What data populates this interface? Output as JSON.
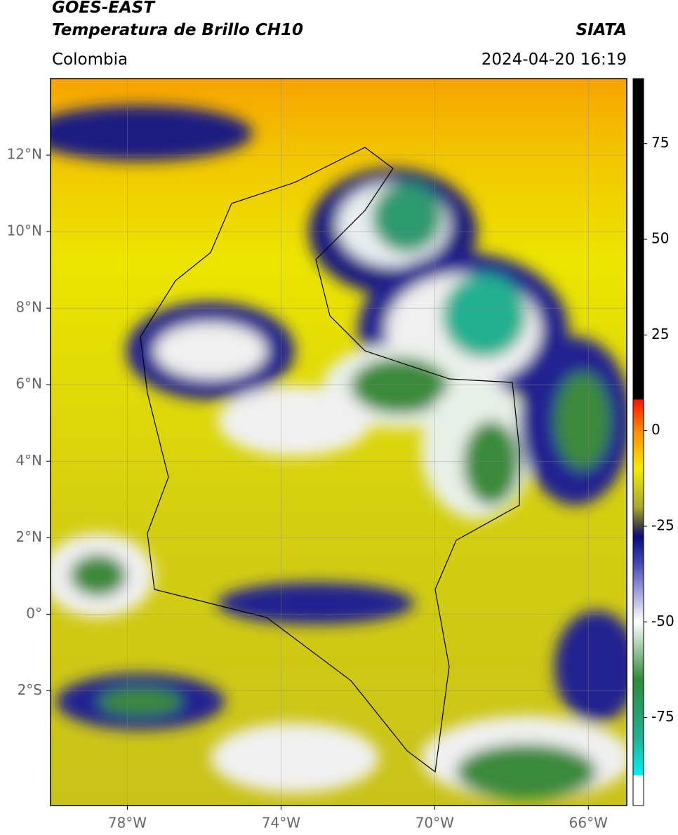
{
  "header": {
    "satellite": "GOES-EAST",
    "product": "Temperatura de Brillo CH10",
    "region": "Colombia",
    "source": "SIATA",
    "datetime": "2024-04-20 16:19"
  },
  "map": {
    "lonlim": [
      -80,
      -65
    ],
    "latlim": [
      -5,
      14
    ],
    "lon_ticks": [
      {
        "value": -78,
        "label": "78°W"
      },
      {
        "value": -74,
        "label": "74°W"
      },
      {
        "value": -70,
        "label": "70°W"
      },
      {
        "value": -66,
        "label": "66°W"
      }
    ],
    "lat_ticks": [
      {
        "value": 12,
        "label": "12°N"
      },
      {
        "value": 10,
        "label": "10°N"
      },
      {
        "value": 8,
        "label": "8°N"
      },
      {
        "value": 6,
        "label": "6°N"
      },
      {
        "value": 4,
        "label": "4°N"
      },
      {
        "value": 2,
        "label": "2°N"
      },
      {
        "value": 0,
        "label": "0°"
      },
      {
        "value": -2,
        "label": "2°S"
      }
    ]
  },
  "colorbar": {
    "range": [
      -98,
      92
    ],
    "ticks": [
      75,
      50,
      25,
      0,
      -25,
      -50,
      -75
    ]
  }
}
